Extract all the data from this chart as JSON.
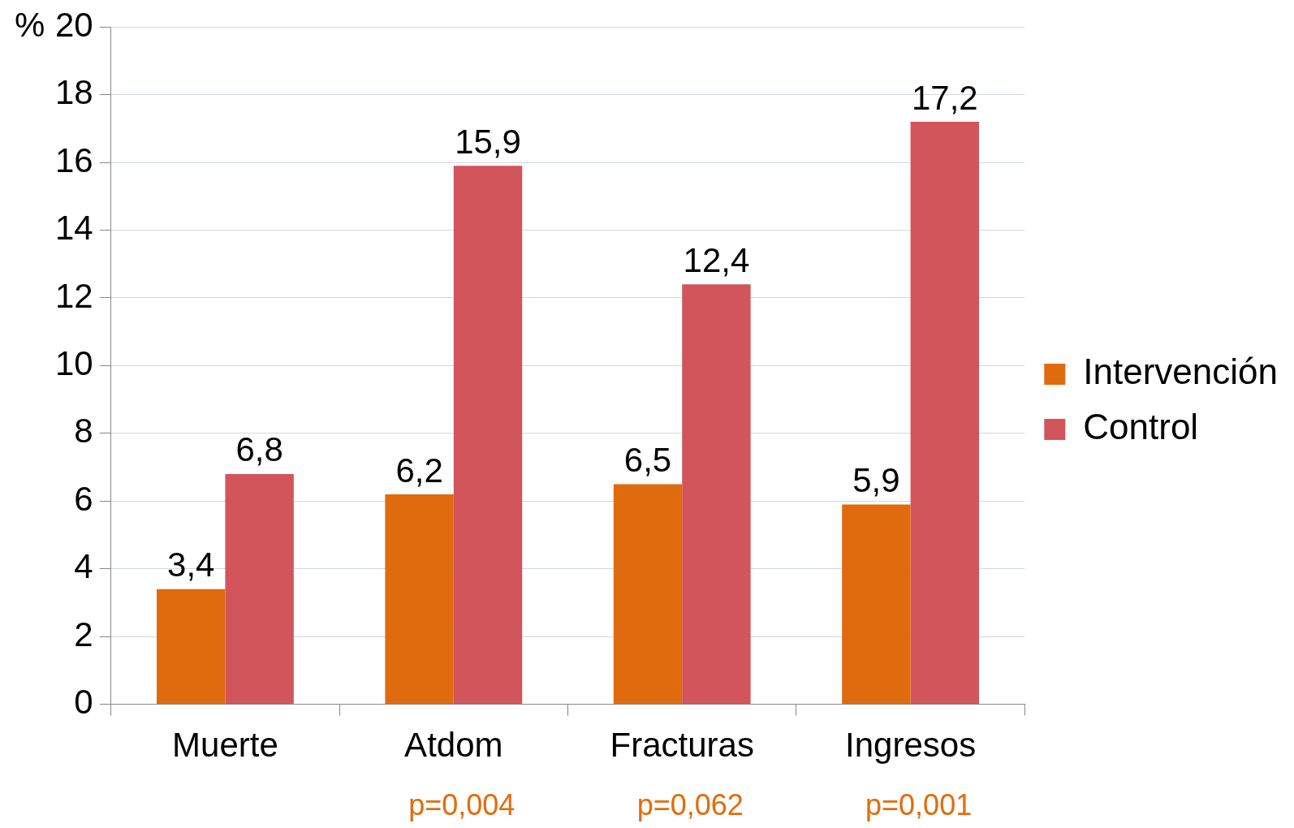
{
  "chart_data": {
    "type": "bar",
    "ylabel": "%",
    "categories": [
      "Muerte",
      "Atdom",
      "Fracturas",
      "Ingresos"
    ],
    "series": [
      {
        "name": "Intervención",
        "color": "#e06b0e",
        "values": [
          3.4,
          6.2,
          6.5,
          5.9
        ],
        "value_labels": [
          "3,4",
          "6,2",
          "6,5",
          "5,9"
        ]
      },
      {
        "name": "Control",
        "color": "#d2555c",
        "values": [
          6.8,
          15.9,
          12.4,
          17.2
        ],
        "value_labels": [
          "6,8",
          "15,9",
          "12,4",
          "17,2"
        ]
      }
    ],
    "ylim": [
      0,
      20
    ],
    "yticks": [
      0,
      2,
      4,
      6,
      8,
      10,
      12,
      14,
      16,
      18,
      20
    ],
    "grid": "y",
    "legend": "right",
    "annotations": [
      "p=0,004",
      "p=0,062",
      "p=0,001"
    ]
  }
}
